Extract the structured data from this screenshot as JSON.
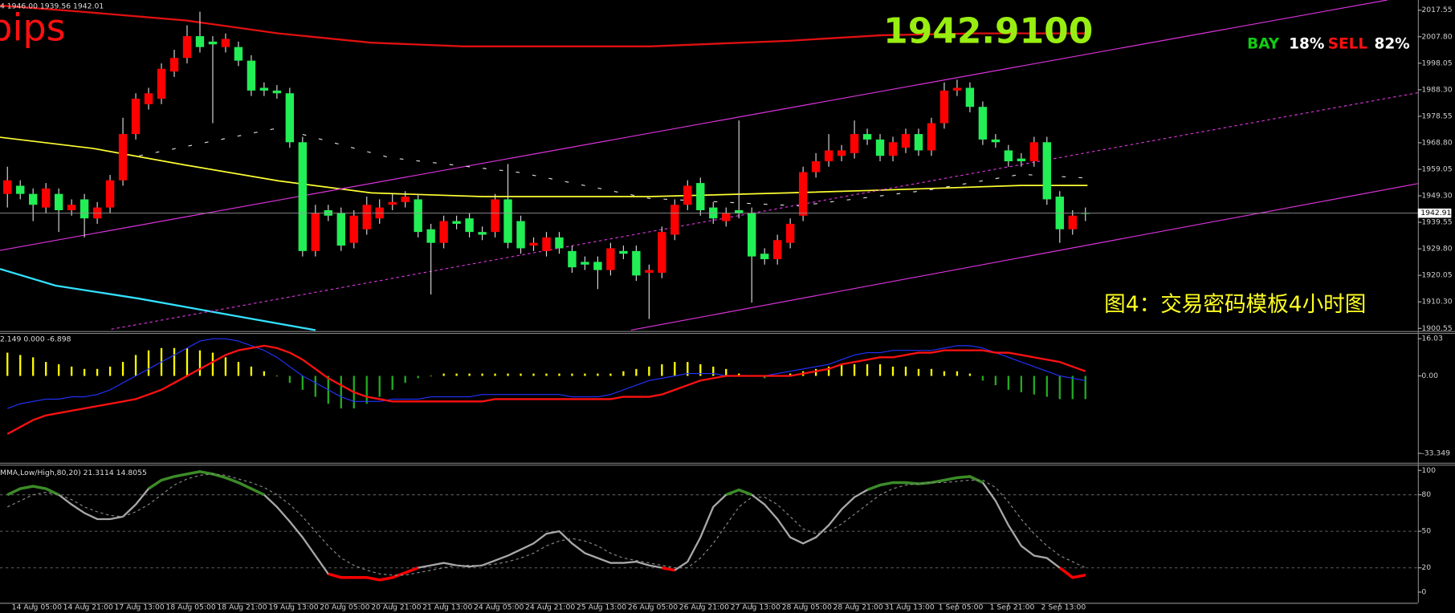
{
  "chart_data": [
    {
      "type": "candlestick",
      "header": "4 1946.00 1939.56 1942.01",
      "annotations": {
        "pips": "pips",
        "price": "1942.9100",
        "bay": "BAY",
        "bay_pct": "18%",
        "sell": "SELL",
        "sell_pct": "82%",
        "caption": "图4：交易密码模板4小时图"
      },
      "last_price_label": "1942.91",
      "up_color": "#ff0000",
      "down_color": "#22ee55",
      "wick_color": "#d8d8d8",
      "open": [
        1950,
        1953,
        1950,
        1945,
        1950,
        1944,
        1948,
        1941,
        1945,
        1955,
        1972,
        1983,
        1985,
        1995,
        2000,
        2008,
        2006,
        2004,
        2004,
        1999,
        1989,
        1988,
        1987,
        1969,
        1929,
        1944,
        1943,
        1932,
        1937,
        1941,
        1946,
        1947,
        1948,
        1937,
        1932,
        1940,
        1941,
        1936,
        1936,
        1948,
        1940,
        1931,
        1929,
        1934,
        1929,
        1925,
        1925,
        1922,
        1929,
        1929,
        1921,
        1921,
        1935,
        1946,
        1954,
        1945,
        1940,
        1944,
        1943,
        1928,
        1926,
        1932,
        1942,
        1958,
        1962,
        1964,
        1965,
        1972,
        1970,
        1964,
        1967,
        1972,
        1966,
        1976,
        1988,
        1989,
        1982,
        1970,
        1966,
        1963,
        1962,
        1969,
        1949,
        1937,
        1943
      ],
      "high": [
        1960,
        1955,
        1952,
        1954,
        1952,
        1948,
        1950,
        1947,
        1957,
        1978,
        1987,
        1989,
        1998,
        2003,
        2012,
        2017,
        2008,
        2009,
        2006,
        2001,
        1991,
        1990,
        1989,
        1971,
        1946,
        1946,
        1945,
        1944,
        1949,
        1948,
        1950,
        1951,
        1950,
        1939,
        1942,
        1942,
        1943,
        1938,
        1950,
        1961,
        1942,
        1934,
        1936,
        1936,
        1931,
        1927,
        1927,
        1932,
        1931,
        1931,
        1924,
        1938,
        1948,
        1955,
        1956,
        1947,
        1945,
        1977,
        1945,
        1930,
        1935,
        1941,
        1960,
        1965,
        1972,
        1968,
        1977,
        1974,
        1972,
        1971,
        1974,
        1974,
        1978,
        1991,
        1992,
        1991,
        1984,
        1972,
        1968,
        1965,
        1971,
        1971,
        1951,
        1944,
        1945
      ],
      "low": [
        1945,
        1948,
        1940,
        1943,
        1936,
        1942,
        1934,
        1939,
        1943,
        1953,
        1970,
        1981,
        1983,
        1993,
        1998,
        2002,
        1976,
        2002,
        1997,
        1986,
        1986,
        1985,
        1967,
        1927,
        1927,
        1940,
        1929,
        1930,
        1935,
        1939,
        1944,
        1945,
        1934,
        1913,
        1930,
        1937,
        1934,
        1933,
        1934,
        1930,
        1928,
        1929,
        1927,
        1928,
        1921,
        1922,
        1915,
        1920,
        1926,
        1918,
        1904,
        1919,
        1933,
        1944,
        1942,
        1939,
        1938,
        1941,
        1910,
        1924,
        1924,
        1930,
        1940,
        1956,
        1960,
        1962,
        1963,
        1968,
        1962,
        1962,
        1965,
        1964,
        1964,
        1974,
        1986,
        1980,
        1968,
        1967,
        1960,
        1960,
        1960,
        1946,
        1932,
        1935,
        1940
      ],
      "close": [
        1955,
        1950,
        1946,
        1952,
        1944,
        1946,
        1941,
        1945,
        1955,
        1972,
        1985,
        1987,
        1996,
        2000,
        2008,
        2004,
        2005,
        2007,
        1999,
        1988,
        1988,
        1987,
        1969,
        1929,
        1943,
        1942,
        1931,
        1942,
        1946,
        1945,
        1947,
        1949,
        1936,
        1932,
        1940,
        1939,
        1936,
        1935,
        1948,
        1932,
        1930,
        1932,
        1934,
        1930,
        1923,
        1924,
        1922,
        1930,
        1928,
        1920,
        1922,
        1936,
        1946,
        1953,
        1944,
        1941,
        1943,
        1943,
        1927,
        1926,
        1933,
        1939,
        1958,
        1962,
        1966,
        1966,
        1972,
        1970,
        1964,
        1969,
        1972,
        1966,
        1976,
        1988,
        1989,
        1982,
        1970,
        1969,
        1962,
        1962,
        1969,
        1948,
        1937,
        1942,
        1942.91
      ],
      "ylim": [
        1899.9,
        2021.3
      ],
      "yticks": [
        2017.55,
        {
          "value": 2007.8,
          "label": "2007.80"
        },
        1998.05,
        {
          "value": 1988.3,
          "label": "1988.30"
        },
        1978.55,
        {
          "value": 1968.8,
          "label": "1968.80"
        },
        1959.05,
        {
          "value": 1949.3,
          "label": "1949.30"
        },
        1939.55,
        {
          "value": 1929.8,
          "label": "1929.80"
        },
        1920.05,
        {
          "value": 1910.3,
          "label": "1910.30"
        },
        1900.55
      ]
    },
    {
      "type": "macd",
      "header": "2.149 0.000 -6.898",
      "histogram": {
        "positive_color": "#ffff00",
        "negative_color": "#22aa22",
        "values": [
          10,
          9,
          8,
          6,
          5,
          4,
          3,
          3,
          4,
          6,
          9,
          11,
          12,
          12,
          12,
          11,
          10,
          8,
          6,
          4,
          2,
          0,
          -3,
          -6,
          -9,
          -12,
          -14,
          -14,
          -12,
          -9,
          -6,
          -3,
          -1,
          0,
          1,
          1,
          1,
          1,
          1,
          1,
          1,
          1,
          1,
          1,
          1,
          1,
          1,
          1,
          2,
          3,
          4,
          5,
          6,
          6,
          5,
          4,
          3,
          1,
          0,
          -1,
          0,
          1,
          2,
          3,
          4,
          5,
          5,
          5,
          5,
          4,
          4,
          3,
          3,
          2,
          2,
          1,
          -2,
          -4,
          -6,
          -7,
          -8,
          -9,
          -10,
          -10,
          -10
        ]
      },
      "series": [
        {
          "color": "#2233ff",
          "width": 1,
          "values": [
            -14,
            -12,
            -11,
            -10,
            -10,
            -9,
            -9,
            -8,
            -6,
            -3,
            0,
            3,
            6,
            9,
            12,
            15,
            16,
            16,
            15,
            13,
            11,
            8,
            4,
            0,
            -3,
            -6,
            -9,
            -11,
            -11,
            -11,
            -10,
            -10,
            -10,
            -9,
            -9,
            -9,
            -9,
            -8,
            -8,
            -8,
            -8,
            -8,
            -8,
            -8,
            -9,
            -9,
            -9,
            -8,
            -6,
            -4,
            -2,
            -1,
            0,
            1,
            1,
            1,
            0,
            0,
            0,
            0,
            1,
            2,
            3,
            4,
            5,
            7,
            9,
            10,
            10,
            11,
            11,
            11,
            11,
            12,
            13,
            13,
            12,
            10,
            8,
            6,
            4,
            2,
            0,
            -1,
            -2
          ]
        },
        {
          "color": "#ff1111",
          "width": 2,
          "values": [
            -25,
            -22,
            -19,
            -17,
            -16,
            -15,
            -14,
            -13,
            -12,
            -11,
            -10,
            -8,
            -6,
            -3,
            0,
            3,
            6,
            9,
            11,
            12,
            13,
            12,
            10,
            7,
            3,
            -1,
            -4,
            -7,
            -9,
            -10,
            -11,
            -11,
            -11,
            -11,
            -11,
            -11,
            -11,
            -11,
            -10,
            -10,
            -10,
            -10,
            -10,
            -10,
            -10,
            -10,
            -10,
            -10,
            -9,
            -9,
            -9,
            -8,
            -6,
            -4,
            -2,
            -1,
            0,
            0,
            0,
            0,
            0,
            0,
            1,
            2,
            3,
            5,
            6,
            7,
            8,
            8,
            9,
            10,
            10,
            11,
            11,
            11,
            11,
            10,
            10,
            9,
            8,
            7,
            6,
            4,
            2
          ]
        }
      ],
      "ylim": [
        -37,
        18.5
      ],
      "yticks": [
        16.03,
        {
          "value": 0,
          "label": "0.00"
        },
        -33.349
      ]
    },
    {
      "type": "line",
      "header": "MMA,Low/High,80,20) 21.3114 14.8055",
      "categories": [
        null,
        null,
        "14 Aug 05:00",
        null,
        null,
        null,
        "14 Aug 21:00",
        null,
        null,
        null,
        "17 Aug 13:00",
        null,
        null,
        null,
        "18 Aug 05:00",
        null,
        null,
        null,
        "18 Aug 21:00",
        null,
        null,
        null,
        "19 Aug 13:00",
        null,
        null,
        null,
        "20 Aug 05:00",
        null,
        null,
        null,
        "20 Aug 21:00",
        null,
        null,
        null,
        "21 Aug 13:00",
        null,
        null,
        null,
        "24 Aug 05:00",
        null,
        null,
        null,
        "24 Aug 21:00",
        null,
        null,
        null,
        "25 Aug 13:00",
        null,
        null,
        null,
        "26 Aug 05:00",
        null,
        null,
        null,
        "26 Aug 21:00",
        null,
        null,
        null,
        "27 Aug 13:00",
        null,
        null,
        null,
        "28 Aug 05:00",
        null,
        null,
        null,
        "28 Aug 21:00",
        null,
        null,
        null,
        "31 Aug 13:00",
        null,
        null,
        null,
        "1 Sep 05:00",
        null,
        null,
        null,
        "1 Sep 21:00",
        null,
        null,
        null,
        "2 Sep 13:00",
        null,
        null
      ],
      "series": [
        {
          "color": "#a8a8a8",
          "high_color": "#3c8c28",
          "low_color": "#ff0000",
          "values": [
            80,
            85,
            87,
            85,
            80,
            72,
            65,
            60,
            60,
            62,
            72,
            85,
            92,
            95,
            97,
            99,
            97,
            94,
            90,
            85,
            80,
            70,
            58,
            45,
            30,
            15,
            12,
            12,
            12,
            10,
            12,
            16,
            20,
            22,
            24,
            22,
            21,
            22,
            26,
            30,
            35,
            40,
            48,
            50,
            40,
            32,
            28,
            24,
            24,
            25,
            22,
            20,
            18,
            25,
            45,
            70,
            80,
            84,
            80,
            72,
            60,
            45,
            40,
            45,
            55,
            68,
            78,
            84,
            88,
            90,
            90,
            89,
            90,
            92,
            94,
            95,
            90,
            75,
            55,
            38,
            30,
            28,
            20,
            12,
            14
          ]
        },
        {
          "color": "#8a8a8a",
          "dashed": true,
          "values": [
            70,
            75,
            80,
            82,
            80,
            76,
            70,
            66,
            63,
            62,
            66,
            72,
            80,
            88,
            93,
            96,
            97,
            96,
            93,
            90,
            86,
            80,
            72,
            62,
            50,
            38,
            28,
            22,
            18,
            15,
            14,
            14,
            16,
            18,
            20,
            22,
            22,
            22,
            23,
            25,
            28,
            32,
            38,
            42,
            44,
            42,
            38,
            32,
            28,
            26,
            24,
            22,
            20,
            20,
            28,
            40,
            55,
            70,
            78,
            78,
            72,
            62,
            52,
            48,
            50,
            56,
            64,
            72,
            80,
            85,
            88,
            89,
            90,
            90,
            91,
            92,
            92,
            86,
            74,
            60,
            48,
            38,
            30,
            25,
            20
          ]
        }
      ],
      "ylim": [
        -8,
        104
      ],
      "yticks": [
        100,
        80,
        50,
        20,
        0
      ]
    }
  ]
}
